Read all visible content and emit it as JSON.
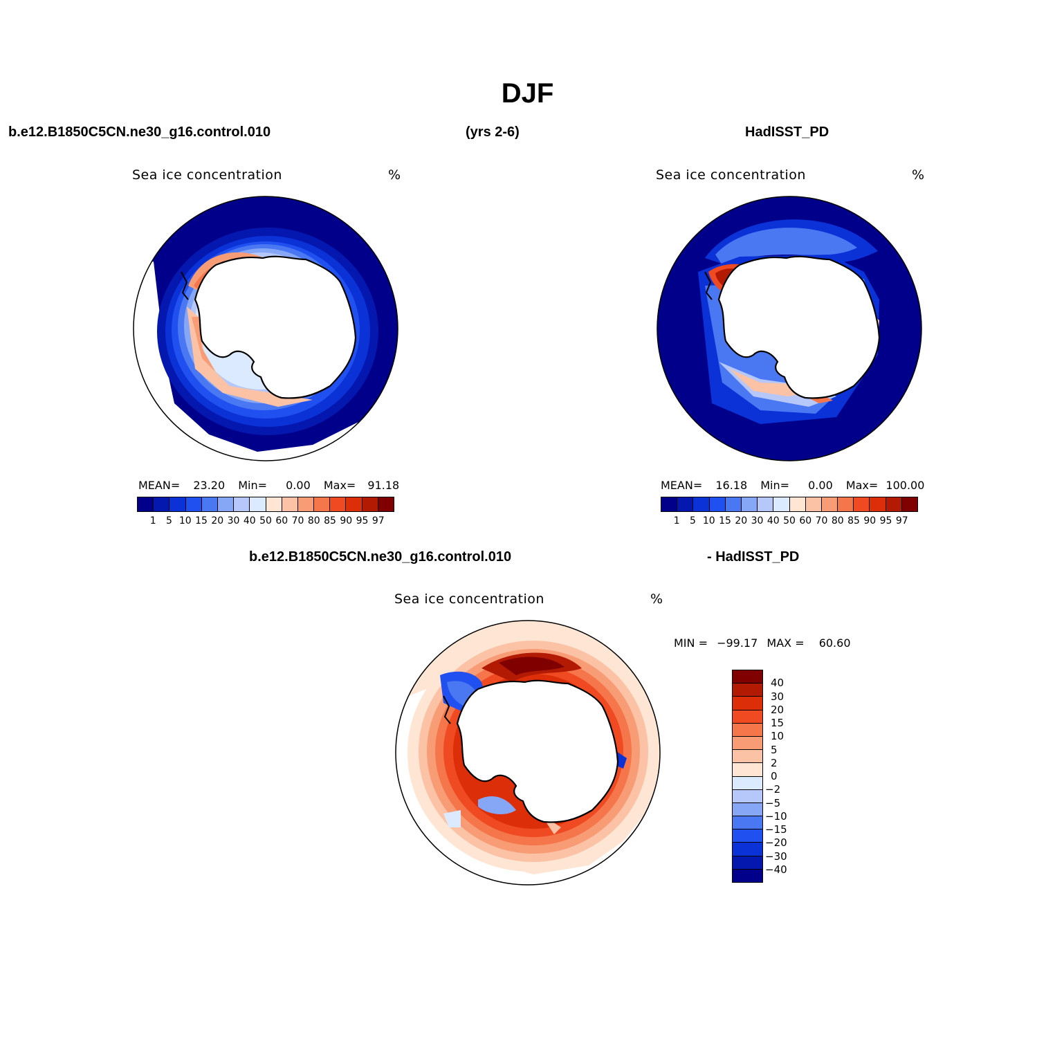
{
  "title": "DJF",
  "header": {
    "case_name": "b.e12.B1850C5CN.ne30_g16.control.010",
    "years": "(yrs 2-6)",
    "obs_name": "HadISST_PD"
  },
  "diff_header": {
    "case_name": "b.e12.B1850C5CN.ne30_g16.control.010",
    "obs_name": "- HadISST_PD"
  },
  "panels": [
    {
      "label": "Sea ice concentration",
      "units": "%",
      "stats": {
        "mean_label": "MEAN=",
        "mean": "23.20",
        "min_label": "Min=",
        "min": "0.00",
        "max_label": "Max=",
        "max": "91.18"
      }
    },
    {
      "label": "Sea ice concentration",
      "units": "%",
      "stats": {
        "mean_label": "MEAN=",
        "mean": "16.18",
        "min_label": "Min=",
        "min": "0.00",
        "max_label": "Max=",
        "max": "100.00"
      }
    },
    {
      "label": "Sea ice concentration",
      "units": "%",
      "stats": {
        "min_label": "MIN =",
        "min": "−99.17",
        "max_label": "MAX =",
        "max": "60.60"
      }
    }
  ],
  "colorbar_abs": {
    "ticks": [
      "1",
      "5",
      "10",
      "15",
      "20",
      "30",
      "40",
      "50",
      "60",
      "70",
      "80",
      "85",
      "90",
      "95",
      "97"
    ],
    "colors": [
      "#00008a",
      "#0418b0",
      "#0a32d6",
      "#2050ef",
      "#4a78f2",
      "#86a6f6",
      "#b6c8fa",
      "#dceaff",
      "#ffe6d4",
      "#fcc2a6",
      "#f89c76",
      "#f5764b",
      "#ef4a22",
      "#dc2e08",
      "#b21a04",
      "#800000"
    ]
  },
  "colorbar_diff": {
    "ticks": [
      "40",
      "30",
      "20",
      "15",
      "10",
      "5",
      "2",
      "0",
      "−2",
      "−5",
      "−10",
      "−15",
      "−20",
      "−30",
      "−40"
    ],
    "colors": [
      "#800000",
      "#b21a04",
      "#dc2e08",
      "#ef4a22",
      "#f5764b",
      "#f89c76",
      "#fcc2a6",
      "#ffe6d4",
      "#dceaff",
      "#b6c8fa",
      "#86a6f6",
      "#4a78f2",
      "#2050ef",
      "#0a32d6",
      "#0418b0",
      "#00008a"
    ]
  }
}
